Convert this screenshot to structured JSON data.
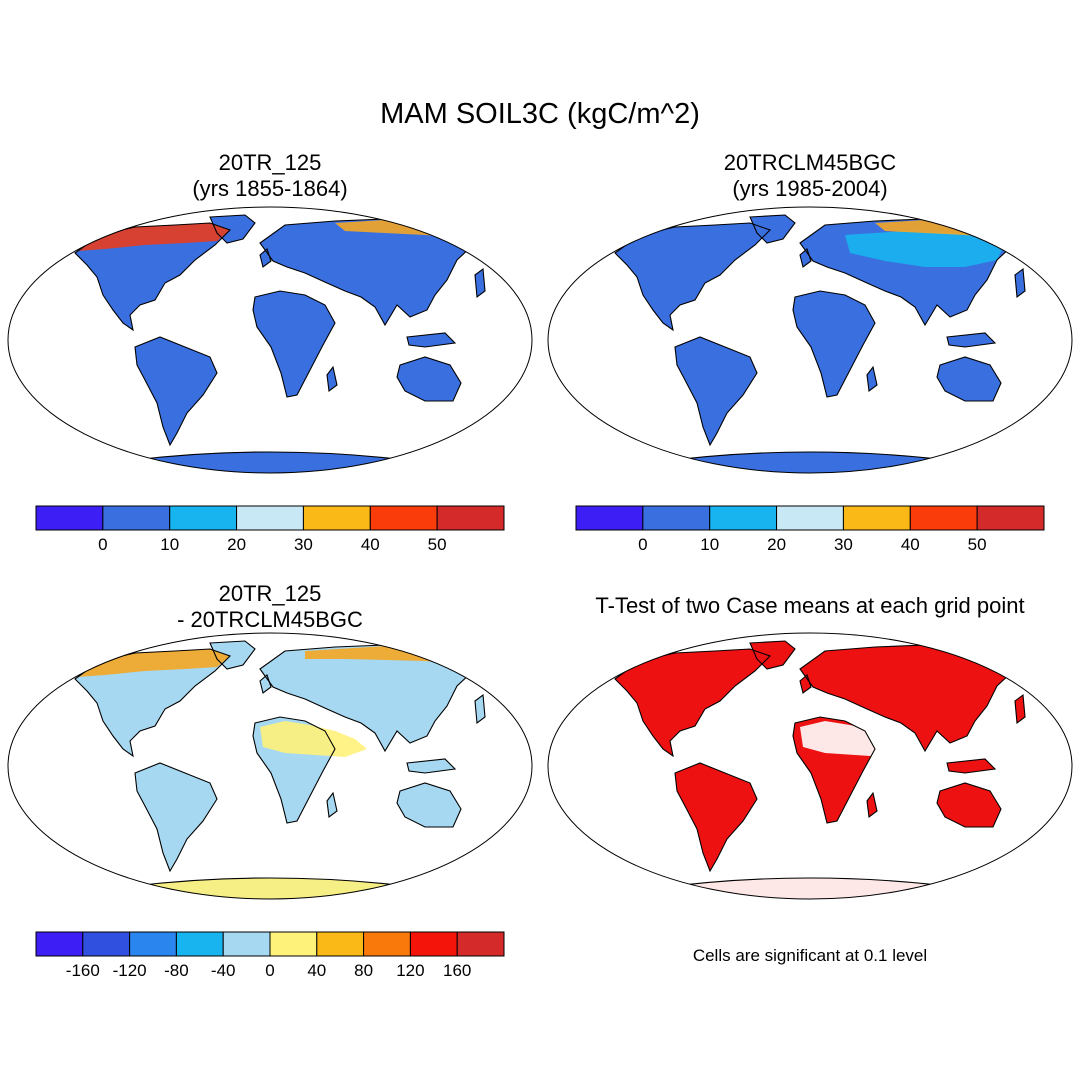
{
  "title": "MAM SOIL3C (kgC/m^2)",
  "panels": [
    {
      "id": "p1",
      "title_lines": [
        "20TR_125",
        "(yrs 1855-1864)"
      ],
      "base_color": "#3a6fe0",
      "ocean": "#ffffff",
      "features": [
        {
          "region": "arctic-north-america",
          "color": "#e83c1e"
        },
        {
          "region": "arctic-siberia",
          "color": "#f5a623"
        }
      ]
    },
    {
      "id": "p2",
      "title_lines": [
        "20TRCLM45BGC",
        "(yrs 1985-2004)"
      ],
      "base_color": "#3a6fe0",
      "ocean": "#ffffff",
      "features": [
        {
          "region": "siberia-boreal",
          "color": "#18b4f0"
        },
        {
          "region": "arctic-siberia",
          "color": "#f5a623"
        }
      ]
    },
    {
      "id": "p3",
      "title_lines": [
        "20TR_125",
        "- 20TRCLM45BGC"
      ],
      "base_color": "#a6d8f2",
      "ocean": "#ffffff",
      "features": [
        {
          "region": "sahara-arabia",
          "color": "#fff27a"
        },
        {
          "region": "antarctica",
          "color": "#fff27a"
        },
        {
          "region": "arctic",
          "color": "#f5a623"
        }
      ]
    },
    {
      "id": "p4",
      "title_lines": [
        "T-Test of two Case means at each grid point"
      ],
      "base_color": "#ee1111",
      "ocean": "#ffffff",
      "features": [
        {
          "region": "sahara-arabia",
          "color": "#ffffff"
        },
        {
          "region": "antarctica",
          "color": "#ffffff"
        }
      ]
    }
  ],
  "colorbars": [
    {
      "id": "cb1",
      "colors": [
        "#3d1ff5",
        "#3a6fe0",
        "#18b4f0",
        "#c8e8f5",
        "#fbb917",
        "#fa3c0a",
        "#d42a2a"
      ],
      "labels": [
        "0",
        "10",
        "20",
        "30",
        "40",
        "50"
      ]
    },
    {
      "id": "cb2",
      "colors": [
        "#3d1ff5",
        "#3a6fe0",
        "#18b4f0",
        "#c8e8f5",
        "#fbb917",
        "#fa3c0a",
        "#d42a2a"
      ],
      "labels": [
        "0",
        "10",
        "20",
        "30",
        "40",
        "50"
      ]
    },
    {
      "id": "cb3",
      "colors": [
        "#3d1ff5",
        "#3050e0",
        "#2a86ee",
        "#18b4f0",
        "#a6d8f2",
        "#fff27a",
        "#fbb917",
        "#f97a0a",
        "#f5140a",
        "#d42a2a"
      ],
      "labels": [
        "-160",
        "-120",
        "-80",
        "-40",
        "0",
        "40",
        "80",
        "120",
        "160"
      ]
    }
  ],
  "note": "Cells are significant at 0.1 level"
}
